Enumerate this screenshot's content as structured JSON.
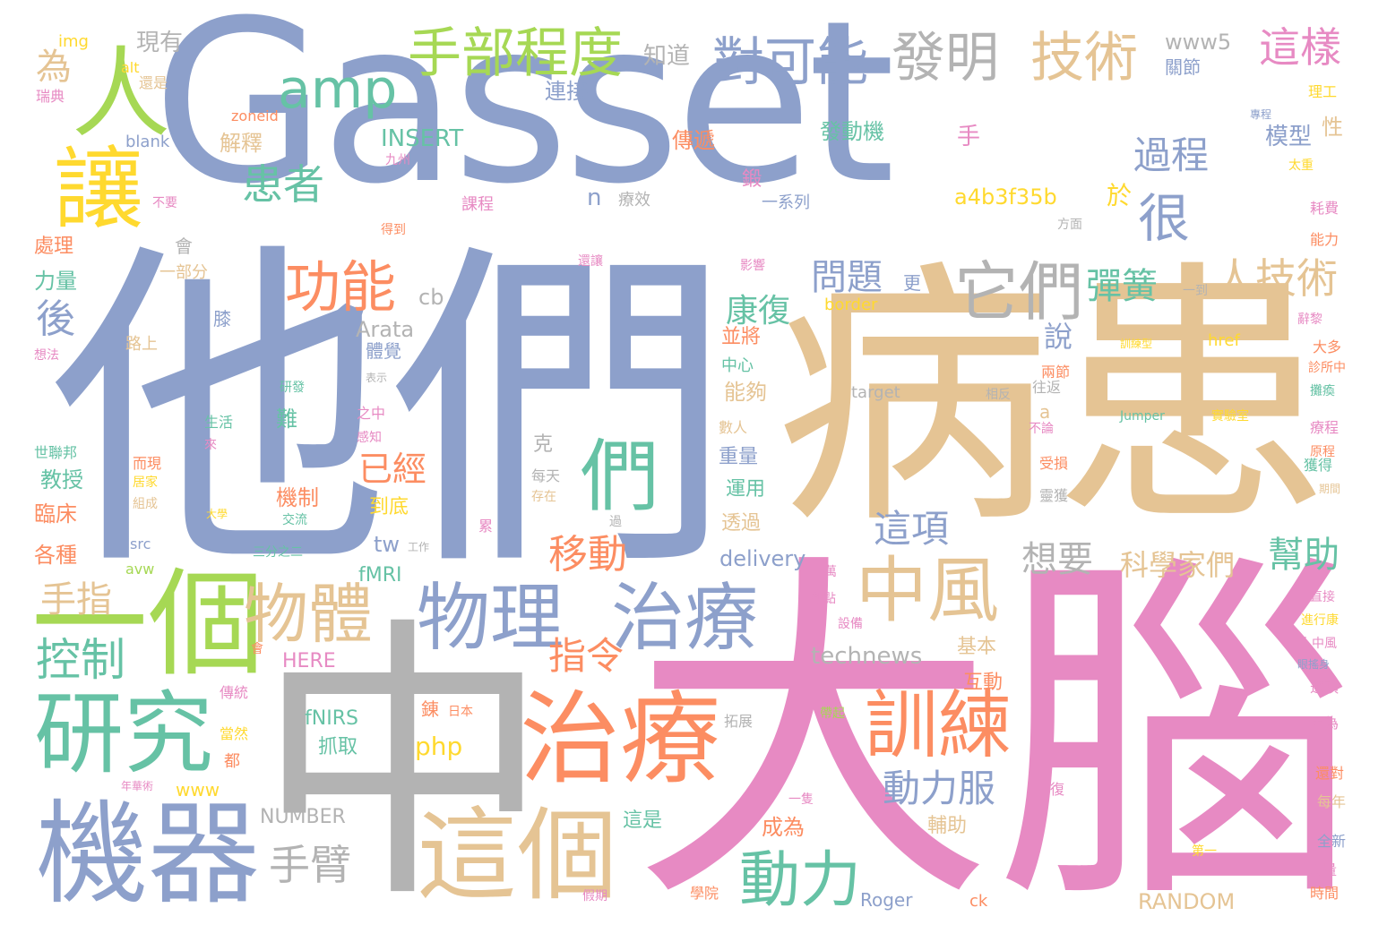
{
  "palette": {
    "blue": "#8da0cb",
    "tan": "#e5c494",
    "pink": "#e78ac3",
    "gray": "#b3b3b3",
    "green": "#66c2a5",
    "orange": "#fc8d62",
    "lime": "#a6d854",
    "yellow": "#ffd92f"
  },
  "words": [
    "Gasset",
    "他們",
    "病患",
    "大腦",
    "中",
    "機器",
    "研究",
    "一個",
    "治療",
    "這個",
    "物理",
    "治療",
    "中風",
    "物體",
    "訓練",
    "動力",
    "手部程度",
    "對可能",
    "發明",
    "技術",
    "它們",
    "功能",
    "讓",
    "人",
    "amp",
    "們",
    "很",
    "控制",
    "手臂",
    "後",
    "這樣",
    "為",
    "患者",
    "人技術",
    "過程",
    "動力服",
    "指令",
    "移動",
    "彈簧",
    "問題",
    "已經",
    "幫助",
    "科學家們",
    "想要",
    "這項",
    "康復",
    "於",
    "手指",
    "說",
    "www5",
    "知道",
    "現有",
    "img",
    "alt",
    "連接",
    "解釋",
    "INSERT",
    "zoneid",
    "blank",
    "傳遞",
    "發動機",
    "模型",
    "a4b3f35b",
    "n",
    "cb",
    "Arata",
    "technews",
    "HERE",
    "fMRI",
    "fNIRS",
    "php",
    "NUMBER",
    "RANDOM",
    "Roger",
    "ck",
    "delivery",
    "tw",
    "www",
    "href",
    "target",
    "Jumper",
    "border",
    "a",
    "手",
    "性",
    "理工",
    "關節",
    "瑞典",
    "還是",
    "九州",
    "課程",
    "療效",
    "鍛",
    "一系列",
    "得到",
    "方面",
    "耗費",
    "能力",
    "不要",
    "處理",
    "力量",
    "一部分",
    "會",
    "還讓",
    "影響",
    "更",
    "一到",
    "辭黎",
    "訓練型",
    "大多",
    "診所中",
    "攤瘓",
    "療程",
    "獲得",
    "期間",
    "膝",
    "路上",
    "想法",
    "研發",
    "表示",
    "生活",
    "來",
    "體覺",
    "能夠",
    "並將",
    "中心",
    "兩節",
    "往返",
    "相反",
    "實驗室",
    "不論",
    "受損",
    "靈獲",
    "世聯邦",
    "而現",
    "居家",
    "組成",
    "大學",
    "難",
    "機制",
    "交流",
    "教授",
    "臨床",
    "各種",
    "src",
    "avw",
    "三分之二",
    "工作",
    "克",
    "每天",
    "存在",
    "過",
    "累",
    "到底",
    "透過",
    "運用",
    "重量",
    "數人",
    "萬",
    "觀點",
    "設備",
    "直接",
    "進行康",
    "人中風",
    "眼搖身",
    "選項",
    "因為",
    "傳統",
    "會",
    "當然",
    "都",
    "年華術",
    "錬",
    "日本",
    "抓取",
    "拓展",
    "基本",
    "互動",
    "帶起",
    "輔助",
    "成為",
    "一隻",
    "這是",
    "復",
    "還對",
    "每年",
    "全新",
    "第一",
    "大量",
    "時間",
    "學院",
    "假期",
    "之中",
    "感知",
    "專程",
    "太重",
    "原程"
  ]
}
